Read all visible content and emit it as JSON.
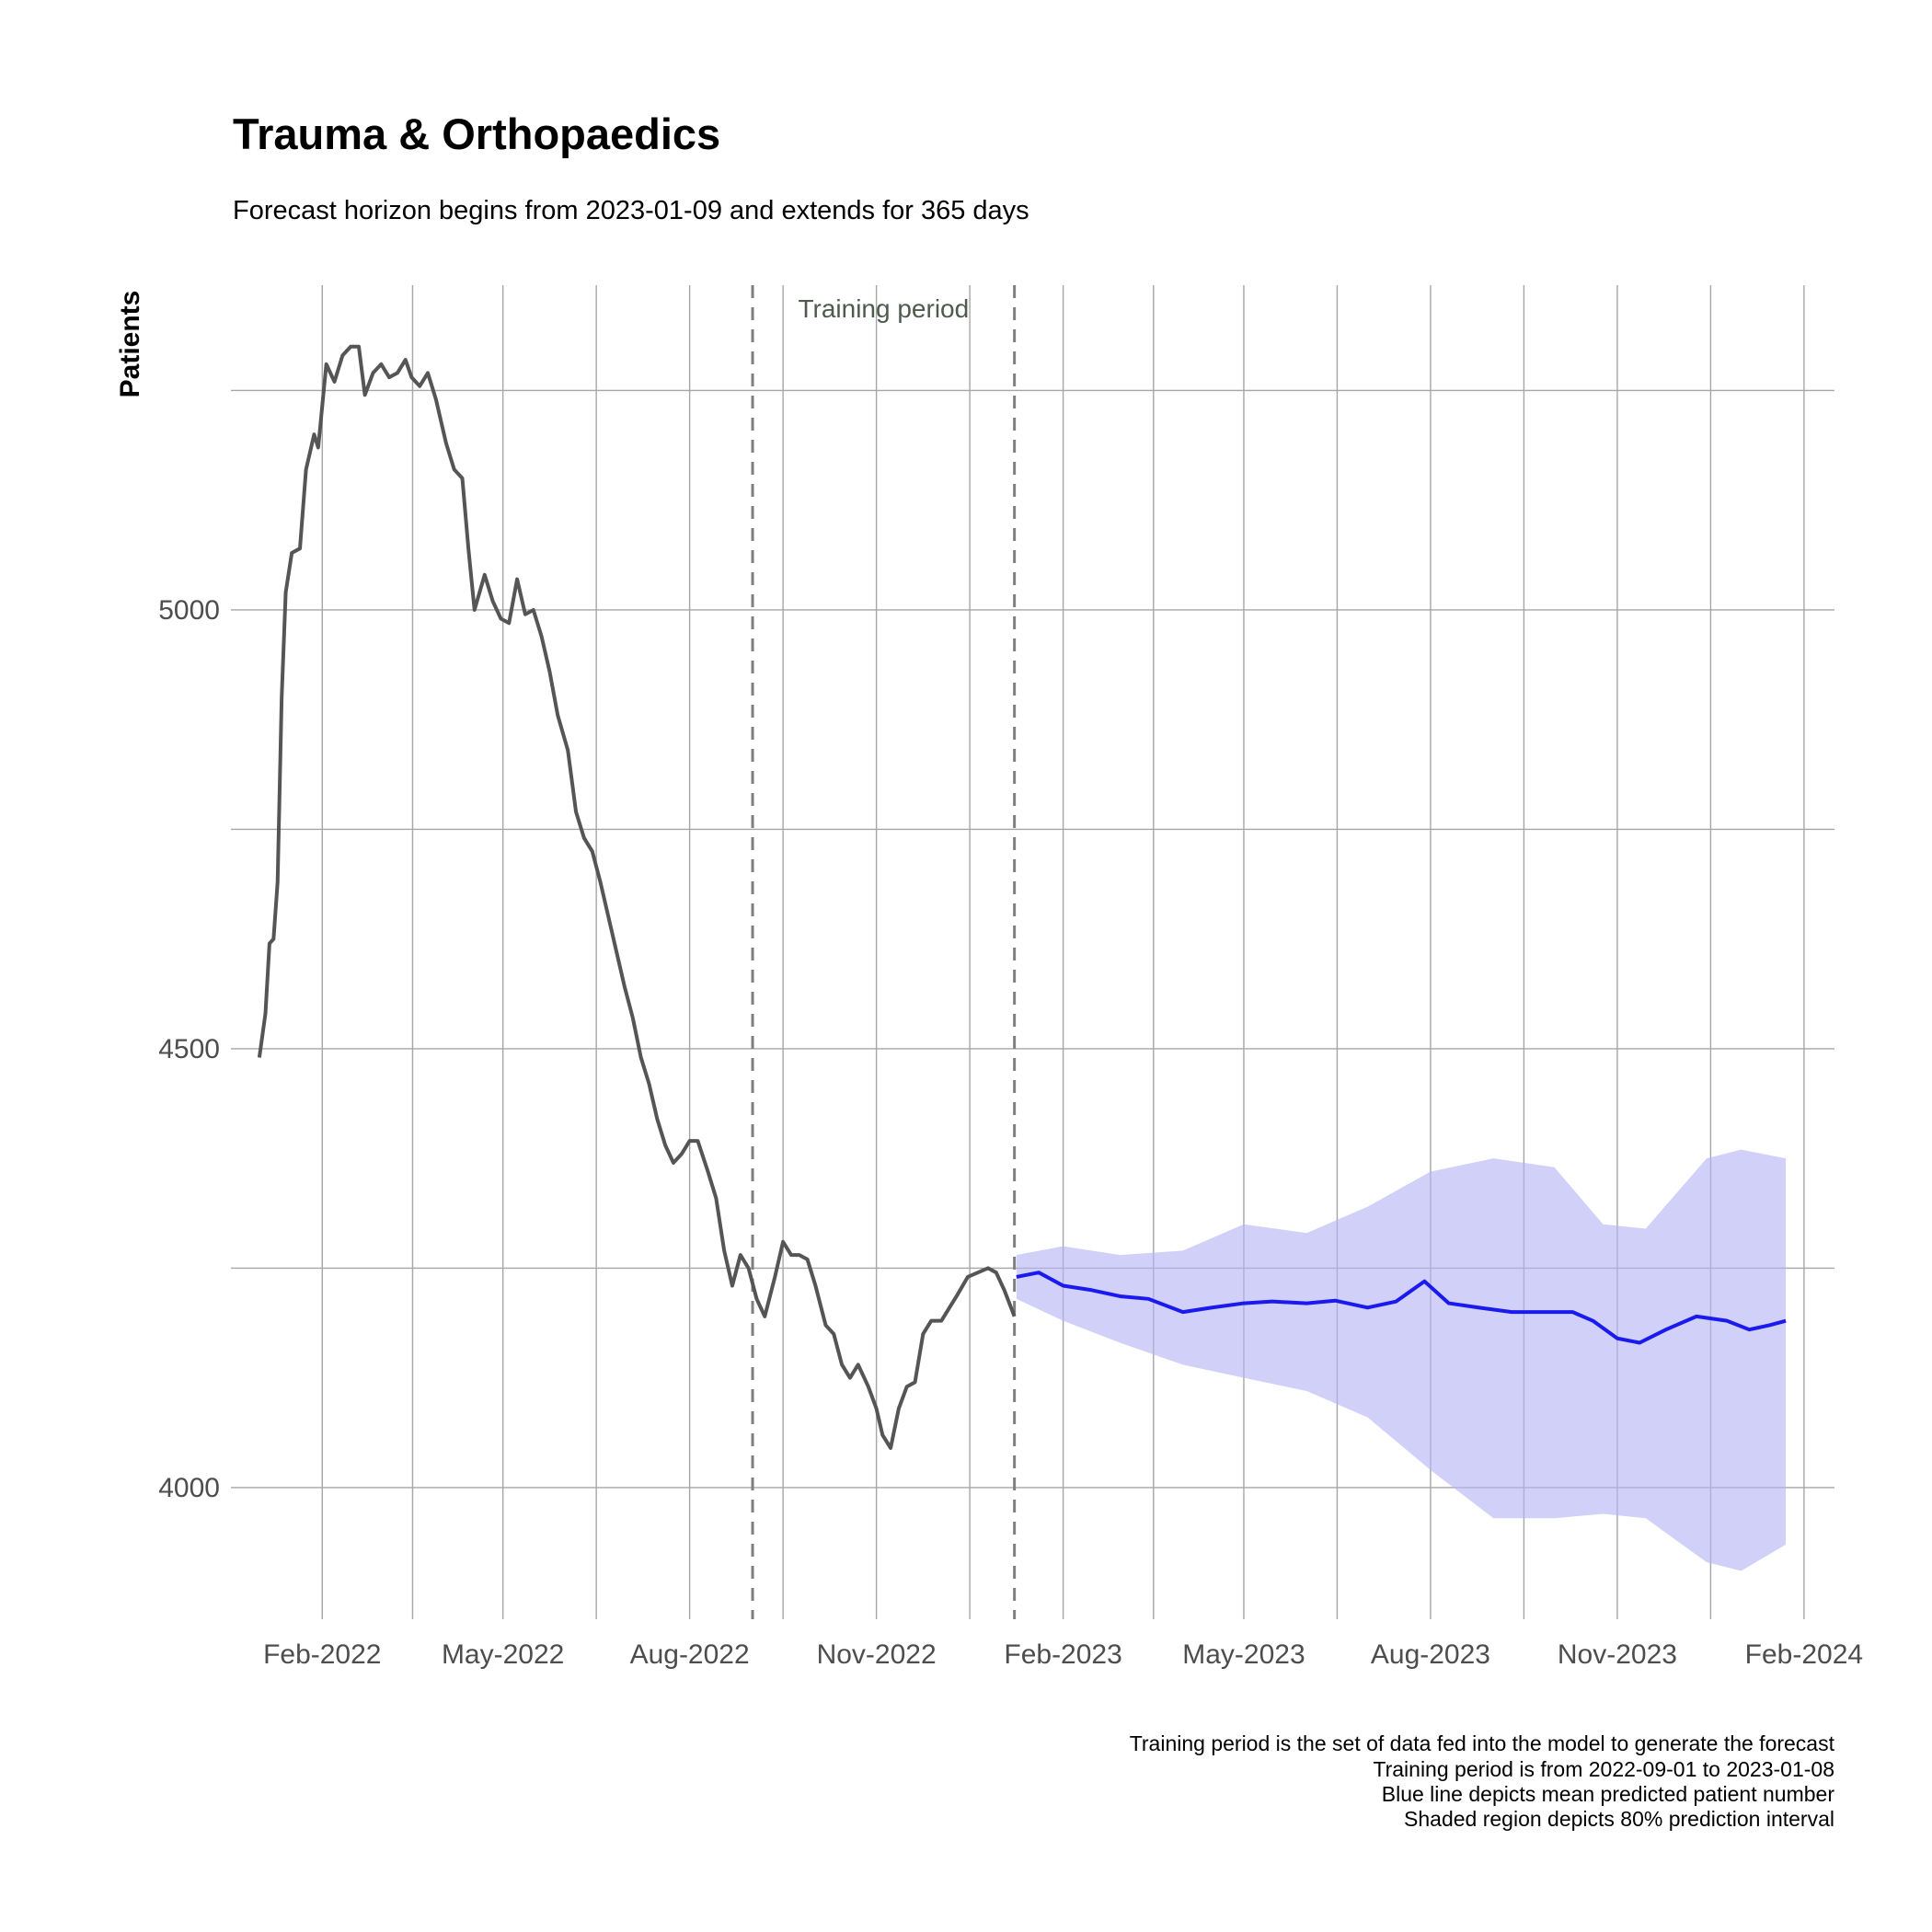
{
  "chart_data": {
    "type": "line",
    "title": "Trauma & Orthopaedics",
    "subtitle": "Forecast horizon begins from 2023-01-09 and extends for 365 days",
    "ylabel": "Patients",
    "xlabel": "",
    "x_ticks": [
      "Feb-2022",
      "May-2022",
      "Aug-2022",
      "Nov-2022",
      "Feb-2023",
      "May-2023",
      "Aug-2023",
      "Nov-2023",
      "Feb-2024"
    ],
    "x_tick_dates": [
      "2022-02-01",
      "2022-05-01",
      "2022-08-01",
      "2022-11-01",
      "2023-02-01",
      "2023-05-01",
      "2023-08-01",
      "2023-11-01",
      "2024-02-01"
    ],
    "y_ticks": [
      4000,
      4500,
      5000
    ],
    "xlim": [
      "2021-12-18",
      "2024-02-16"
    ],
    "ylim": [
      3850,
      5370
    ],
    "grid": true,
    "annotation": "Training period",
    "training_period": [
      "2022-09-01",
      "2023-01-08"
    ],
    "caption": [
      "Training period is the set of data fed into the model to generate the forecast",
      "Training period is from 2022-09-01 to 2023-01-08",
      "Blue line depicts mean predicted patient number",
      "Shaded region depicts 80% prediction interval"
    ],
    "series": [
      {
        "values": [
          [
            "2022-01-01",
            4490
          ],
          [
            "2022-01-04",
            4540
          ],
          [
            "2022-01-06",
            4620
          ],
          [
            "2022-01-08",
            4625
          ],
          [
            "2022-01-10",
            4690
          ],
          [
            "2022-01-12",
            4900
          ],
          [
            "2022-01-14",
            5020
          ],
          [
            "2022-01-17",
            5065
          ],
          [
            "2022-01-21",
            5070
          ],
          [
            "2022-01-24",
            5160
          ],
          [
            "2022-01-28",
            5200
          ],
          [
            "2022-01-30",
            5185
          ],
          [
            "2022-02-03",
            5280
          ],
          [
            "2022-02-07",
            5260
          ],
          [
            "2022-02-11",
            5290
          ],
          [
            "2022-02-15",
            5300
          ],
          [
            "2022-02-19",
            5300
          ],
          [
            "2022-02-22",
            5245
          ],
          [
            "2022-02-26",
            5270
          ],
          [
            "2022-03-02",
            5280
          ],
          [
            "2022-03-06",
            5265
          ],
          [
            "2022-03-10",
            5270
          ],
          [
            "2022-03-14",
            5285
          ],
          [
            "2022-03-17",
            5265
          ],
          [
            "2022-03-21",
            5255
          ],
          [
            "2022-03-25",
            5270
          ],
          [
            "2022-03-29",
            5240
          ],
          [
            "2022-04-03",
            5190
          ],
          [
            "2022-04-07",
            5160
          ],
          [
            "2022-04-11",
            5150
          ],
          [
            "2022-04-14",
            5070
          ],
          [
            "2022-04-17",
            5000
          ],
          [
            "2022-04-22",
            5040
          ],
          [
            "2022-04-26",
            5010
          ],
          [
            "2022-04-30",
            4990
          ],
          [
            "2022-05-04",
            4985
          ],
          [
            "2022-05-08",
            5035
          ],
          [
            "2022-05-12",
            4995
          ],
          [
            "2022-05-16",
            5000
          ],
          [
            "2022-05-20",
            4970
          ],
          [
            "2022-05-24",
            4930
          ],
          [
            "2022-05-28",
            4880
          ],
          [
            "2022-06-02",
            4840
          ],
          [
            "2022-06-06",
            4770
          ],
          [
            "2022-06-10",
            4740
          ],
          [
            "2022-06-14",
            4725
          ],
          [
            "2022-06-18",
            4690
          ],
          [
            "2022-06-22",
            4650
          ],
          [
            "2022-06-26",
            4610
          ],
          [
            "2022-06-30",
            4570
          ],
          [
            "2022-07-04",
            4535
          ],
          [
            "2022-07-08",
            4490
          ],
          [
            "2022-07-12",
            4460
          ],
          [
            "2022-07-16",
            4420
          ],
          [
            "2022-07-20",
            4390
          ],
          [
            "2022-07-24",
            4370
          ],
          [
            "2022-07-28",
            4380
          ],
          [
            "2022-08-01",
            4395
          ],
          [
            "2022-08-05",
            4395
          ],
          [
            "2022-08-10",
            4360
          ],
          [
            "2022-08-14",
            4330
          ],
          [
            "2022-08-18",
            4270
          ],
          [
            "2022-08-22",
            4230
          ],
          [
            "2022-08-26",
            4265
          ],
          [
            "2022-08-30",
            4250
          ],
          [
            "2022-09-03",
            4215
          ],
          [
            "2022-09-07",
            4195
          ],
          [
            "2022-09-12",
            4240
          ],
          [
            "2022-09-16",
            4280
          ],
          [
            "2022-09-20",
            4265
          ],
          [
            "2022-09-24",
            4265
          ],
          [
            "2022-09-28",
            4260
          ],
          [
            "2022-10-02",
            4230
          ],
          [
            "2022-10-07",
            4185
          ],
          [
            "2022-10-11",
            4175
          ],
          [
            "2022-10-15",
            4140
          ],
          [
            "2022-10-19",
            4125
          ],
          [
            "2022-10-23",
            4140
          ],
          [
            "2022-10-28",
            4115
          ],
          [
            "2022-11-01",
            4090
          ],
          [
            "2022-11-04",
            4060
          ],
          [
            "2022-11-08",
            4045
          ],
          [
            "2022-11-12",
            4090
          ],
          [
            "2022-11-16",
            4115
          ],
          [
            "2022-11-20",
            4120
          ],
          [
            "2022-11-24",
            4175
          ],
          [
            "2022-11-28",
            4190
          ],
          [
            "2022-12-03",
            4190
          ],
          [
            "2022-12-07",
            4205
          ],
          [
            "2022-12-11",
            4220
          ],
          [
            "2022-12-16",
            4240
          ],
          [
            "2022-12-21",
            4245
          ],
          [
            "2022-12-26",
            4250
          ],
          [
            "2022-12-30",
            4245
          ],
          [
            "2023-01-03",
            4225
          ],
          [
            "2023-01-08",
            4195
          ]
        ]
      },
      {
        "values": [
          [
            "2023-01-09",
            4240
          ],
          [
            "2023-01-20",
            4245
          ],
          [
            "2023-02-01",
            4230
          ],
          [
            "2023-02-15",
            4225
          ],
          [
            "2023-03-01",
            4218
          ],
          [
            "2023-03-15",
            4215
          ],
          [
            "2023-04-01",
            4200
          ],
          [
            "2023-04-15",
            4205
          ],
          [
            "2023-05-01",
            4210
          ],
          [
            "2023-05-15",
            4212
          ],
          [
            "2023-06-01",
            4210
          ],
          [
            "2023-06-15",
            4213
          ],
          [
            "2023-07-01",
            4205
          ],
          [
            "2023-07-15",
            4212
          ],
          [
            "2023-07-29",
            4235
          ],
          [
            "2023-08-10",
            4210
          ],
          [
            "2023-08-25",
            4205
          ],
          [
            "2023-09-10",
            4200
          ],
          [
            "2023-09-25",
            4200
          ],
          [
            "2023-10-10",
            4200
          ],
          [
            "2023-10-20",
            4190
          ],
          [
            "2023-11-01",
            4170
          ],
          [
            "2023-11-12",
            4165
          ],
          [
            "2023-11-25",
            4180
          ],
          [
            "2023-12-10",
            4195
          ],
          [
            "2023-12-25",
            4190
          ],
          [
            "2024-01-05",
            4180
          ],
          [
            "2024-01-15",
            4185
          ],
          [
            "2024-01-23",
            4190
          ]
        ]
      }
    ],
    "band": [
      [
        "2023-01-09",
        4215,
        4265
      ],
      [
        "2023-02-01",
        4190,
        4275
      ],
      [
        "2023-03-01",
        4165,
        4265
      ],
      [
        "2023-04-01",
        4140,
        4270
      ],
      [
        "2023-05-01",
        4125,
        4300
      ],
      [
        "2023-06-01",
        4110,
        4290
      ],
      [
        "2023-07-01",
        4080,
        4320
      ],
      [
        "2023-08-01",
        4020,
        4360
      ],
      [
        "2023-09-01",
        3965,
        4375
      ],
      [
        "2023-10-01",
        3965,
        4365
      ],
      [
        "2023-10-25",
        3970,
        4300
      ],
      [
        "2023-11-15",
        3965,
        4295
      ],
      [
        "2023-12-15",
        3915,
        4375
      ],
      [
        "2024-01-01",
        3905,
        4385
      ],
      [
        "2024-01-23",
        3935,
        4375
      ]
    ],
    "colors": {
      "history": "#555555",
      "forecast": "#1a1aee",
      "interval": "#b3b3f5",
      "grid": "#a6a6a6",
      "vline": "#7f7f7f"
    }
  }
}
